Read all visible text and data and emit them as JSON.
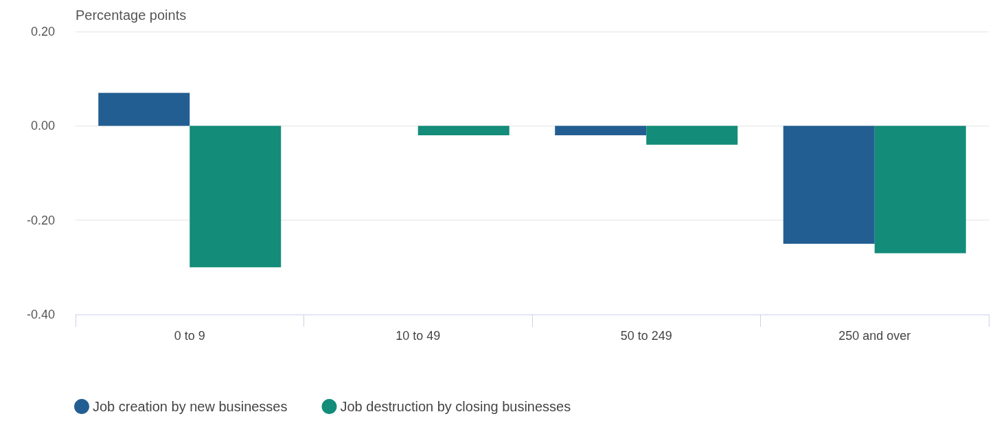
{
  "chart_data": {
    "type": "bar",
    "ylabel": "Percentage points",
    "categories": [
      "0 to 9",
      "10 to 49",
      "50 to 249",
      "250 and over"
    ],
    "series": [
      {
        "name": "Job creation by new businesses",
        "color": "#225e92",
        "values": [
          0.07,
          0,
          -0.02,
          -0.25
        ]
      },
      {
        "name": "Job destruction by closing businesses",
        "color": "#138c79",
        "values": [
          -0.3,
          -0.02,
          -0.04,
          -0.27
        ]
      }
    ],
    "ylim": [
      -0.4,
      0.2
    ],
    "yticks": [
      {
        "value": -0.4,
        "label": "-0.40"
      },
      {
        "value": -0.2,
        "label": "-0.20"
      },
      {
        "value": 0,
        "label": "0.00"
      },
      {
        "value": 0.2,
        "label": "0.20"
      }
    ],
    "grid": "y",
    "legend": "bottom left"
  }
}
